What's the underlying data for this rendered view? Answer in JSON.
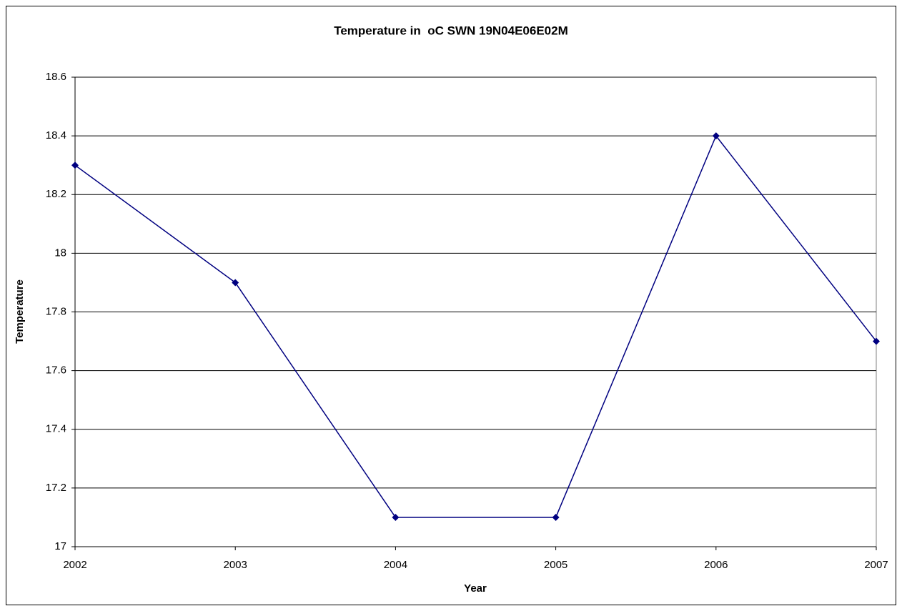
{
  "chart_data": {
    "type": "line",
    "title": "Temperature in  oC SWN 19N04E06E02M",
    "x_label": "Year",
    "y_label": "Temperature",
    "x": [
      2002,
      2003,
      2004,
      2005,
      2006,
      2007
    ],
    "series": [
      {
        "color": "#000080",
        "values": [
          18.3,
          17.9,
          17.1,
          17.1,
          18.4,
          17.7
        ]
      }
    ],
    "xlim": [
      2002,
      2007
    ],
    "xticks": [
      2002,
      2003,
      2004,
      2005,
      2006,
      2007
    ],
    "ylim": [
      17,
      18.6
    ],
    "yticks": [
      17,
      17.2,
      17.4,
      17.6,
      17.8,
      18,
      18.2,
      18.4,
      18.6
    ],
    "grid": true
  }
}
